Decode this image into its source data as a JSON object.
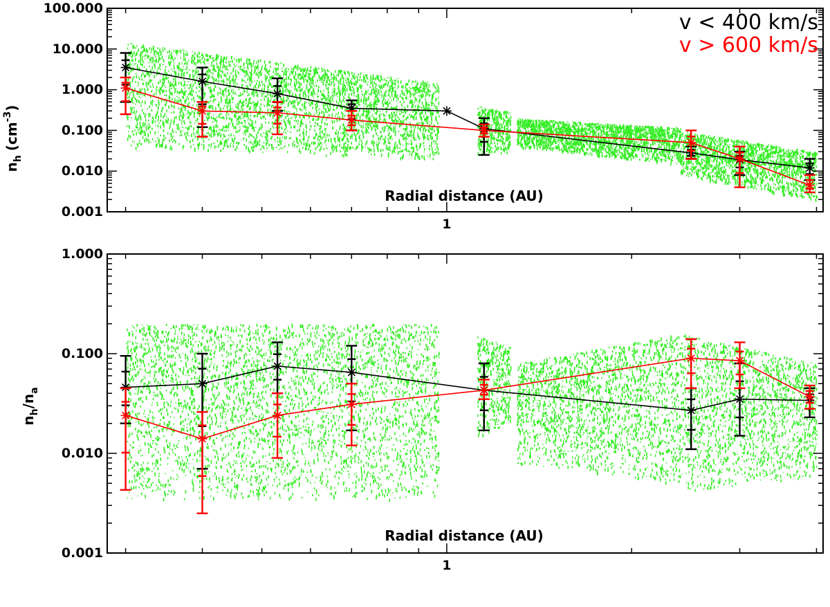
{
  "chart_data": [
    {
      "type": "scatter",
      "panel": "top",
      "xscale": "log",
      "yscale": "log",
      "xlim": [
        0.28,
        4.1
      ],
      "ylim": [
        0.001,
        100
      ],
      "xlabel": "Radial distance (AU)",
      "ylabel_main": "n",
      "ylabel_sub": "h",
      "ylabel_unit": "(cm",
      "ylabel_exp": "-3",
      "ylabel_close": ")",
      "x_tick_labels": [
        {
          "value": 1,
          "label": "1"
        }
      ],
      "y_ticks": [
        {
          "value": 100,
          "label": "100.000"
        },
        {
          "value": 10,
          "label": "10.000"
        },
        {
          "value": 1,
          "label": "1.000"
        },
        {
          "value": 0.1,
          "label": "0.100"
        },
        {
          "value": 0.01,
          "label": "0.010"
        },
        {
          "value": 0.001,
          "label": "0.001"
        }
      ],
      "legend": [
        {
          "label": "v < 400 km/s",
          "color": "#000000"
        },
        {
          "label": "v > 600 km/s",
          "color": "#ff0000"
        }
      ],
      "scatter_clusters": [
        {
          "x_range": [
            0.3,
            0.97
          ],
          "y_start": [
            0.04,
            15
          ],
          "y_end": [
            0.02,
            1.5
          ]
        },
        {
          "x_range": [
            1.12,
            1.27
          ],
          "y_start": [
            0.025,
            0.4
          ],
          "y_end": [
            0.03,
            0.3
          ]
        },
        {
          "x_range": [
            1.3,
            2.4
          ],
          "y_start": [
            0.04,
            0.2
          ],
          "y_end": [
            0.015,
            0.12
          ]
        },
        {
          "x_range": [
            2.4,
            4.0
          ],
          "y_start": [
            0.008,
            0.1
          ],
          "y_end": [
            0.002,
            0.03
          ]
        }
      ],
      "series": [
        {
          "name": "v < 400 km/s",
          "color": "#000000",
          "points": [
            {
              "x": 0.3,
              "y": 3.5,
              "lo": 0.5,
              "hi": 8
            },
            {
              "x": 0.4,
              "y": 1.6,
              "lo": 0.12,
              "hi": 3.5
            },
            {
              "x": 0.53,
              "y": 0.8,
              "lo": 0.3,
              "hi": 1.9
            },
            {
              "x": 0.7,
              "y": 0.35,
              "lo": 0.1,
              "hi": 0.55
            },
            {
              "x": 1.0,
              "y": 0.3
            },
            {
              "x": 1.15,
              "y": 0.11,
              "lo": 0.025,
              "hi": 0.2
            },
            {
              "x": 2.5,
              "y": 0.028,
              "lo": 0.02,
              "hi": 0.04
            },
            {
              "x": 3.0,
              "y": 0.019,
              "lo": 0.008,
              "hi": 0.03
            },
            {
              "x": 3.9,
              "y": 0.012,
              "lo": 0.006,
              "hi": 0.02
            }
          ]
        },
        {
          "name": "v > 600 km/s",
          "color": "#ff0000",
          "points": [
            {
              "x": 0.3,
              "y": 1.1,
              "lo": 0.25,
              "hi": 2
            },
            {
              "x": 0.4,
              "y": 0.3,
              "lo": 0.07,
              "hi": 0.5
            },
            {
              "x": 0.53,
              "y": 0.27,
              "lo": 0.08,
              "hi": 0.5
            },
            {
              "x": 0.7,
              "y": 0.18,
              "lo": 0.1,
              "hi": 0.3
            },
            {
              "x": 1.15,
              "y": 0.1,
              "lo": 0.07,
              "hi": 0.14
            },
            {
              "x": 2.5,
              "y": 0.05,
              "lo": 0.02,
              "hi": 0.1
            },
            {
              "x": 3.0,
              "y": 0.02,
              "lo": 0.004,
              "hi": 0.04
            },
            {
              "x": 3.9,
              "y": 0.0045,
              "lo": 0.003,
              "hi": 0.008
            }
          ]
        }
      ]
    },
    {
      "type": "scatter",
      "panel": "bottom",
      "xscale": "log",
      "yscale": "log",
      "xlim": [
        0.28,
        4.1
      ],
      "ylim": [
        0.001,
        1
      ],
      "xlabel": "Radial distance (AU)",
      "ylabel_main": "n",
      "ylabel_sub": "h",
      "ylabel_slash": "/n",
      "ylabel_sub2": "a",
      "x_tick_labels": [
        {
          "value": 1,
          "label": "1"
        }
      ],
      "y_ticks": [
        {
          "value": 1,
          "label": "1.000"
        },
        {
          "value": 0.1,
          "label": "0.100"
        },
        {
          "value": 0.01,
          "label": "0.010"
        },
        {
          "value": 0.001,
          "label": "0.001"
        }
      ],
      "scatter_clusters": [
        {
          "x_range": [
            0.3,
            0.97
          ],
          "y_start": [
            0.0035,
            0.2
          ],
          "y_end": [
            0.0035,
            0.2
          ]
        },
        {
          "x_range": [
            1.12,
            1.27
          ],
          "y_start": [
            0.015,
            0.15
          ],
          "y_end": [
            0.02,
            0.12
          ]
        },
        {
          "x_range": [
            1.3,
            2.4
          ],
          "y_start": [
            0.008,
            0.08
          ],
          "y_end": [
            0.005,
            0.16
          ]
        },
        {
          "x_range": [
            2.4,
            4.0
          ],
          "y_start": [
            0.004,
            0.16
          ],
          "y_end": [
            0.006,
            0.08
          ]
        }
      ],
      "series": [
        {
          "name": "v < 400 km/s",
          "color": "#000000",
          "points": [
            {
              "x": 0.3,
              "y": 0.046,
              "lo": 0.02,
              "hi": 0.095
            },
            {
              "x": 0.4,
              "y": 0.05,
              "lo": 0.007,
              "hi": 0.1
            },
            {
              "x": 0.53,
              "y": 0.075,
              "lo": 0.04,
              "hi": 0.13
            },
            {
              "x": 0.7,
              "y": 0.065,
              "lo": 0.017,
              "hi": 0.12
            },
            {
              "x": 1.15,
              "y": 0.043,
              "lo": 0.017,
              "hi": 0.08
            },
            {
              "x": 2.5,
              "y": 0.027,
              "lo": 0.011,
              "hi": 0.045
            },
            {
              "x": 3.0,
              "y": 0.035,
              "lo": 0.015,
              "hi": 0.08
            },
            {
              "x": 3.9,
              "y": 0.034,
              "lo": 0.023,
              "hi": 0.045
            }
          ]
        },
        {
          "name": "v > 600 km/s",
          "color": "#ff0000",
          "points": [
            {
              "x": 0.3,
              "y": 0.024,
              "lo": 0.0043,
              "hi": 0.045
            },
            {
              "x": 0.4,
              "y": 0.014,
              "lo": 0.0025,
              "hi": 0.026
            },
            {
              "x": 0.53,
              "y": 0.024,
              "lo": 0.009,
              "hi": 0.04
            },
            {
              "x": 0.7,
              "y": 0.031,
              "lo": 0.012,
              "hi": 0.05
            },
            {
              "x": 1.15,
              "y": 0.043,
              "lo": 0.035,
              "hi": 0.055
            },
            {
              "x": 2.5,
              "y": 0.09,
              "lo": 0.045,
              "hi": 0.14
            },
            {
              "x": 3.0,
              "y": 0.085,
              "lo": 0.045,
              "hi": 0.13
            },
            {
              "x": 3.9,
              "y": 0.037,
              "lo": 0.028,
              "hi": 0.048
            }
          ]
        }
      ]
    }
  ]
}
